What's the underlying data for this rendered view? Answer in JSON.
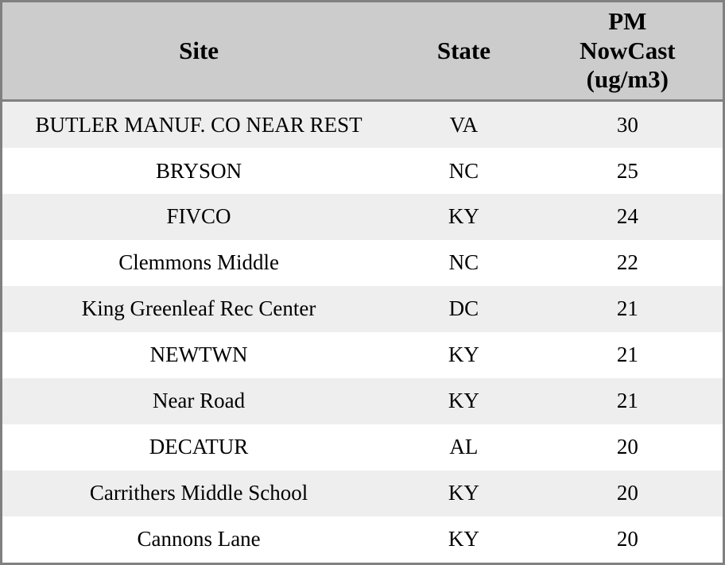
{
  "table": {
    "columns": [
      {
        "key": "site",
        "label": "Site"
      },
      {
        "key": "state",
        "label": "State"
      },
      {
        "key": "pm",
        "label": "PM\nNowCast\n(ug/m3)"
      }
    ],
    "rows": [
      {
        "site": "BUTLER MANUF. CO NEAR REST",
        "state": "VA",
        "pm": "30"
      },
      {
        "site": "BRYSON",
        "state": "NC",
        "pm": "25"
      },
      {
        "site": "FIVCO",
        "state": "KY",
        "pm": "24"
      },
      {
        "site": "Clemmons Middle",
        "state": "NC",
        "pm": "22"
      },
      {
        "site": "King Greenleaf Rec Center",
        "state": "DC",
        "pm": "21"
      },
      {
        "site": "NEWTWN",
        "state": "KY",
        "pm": "21"
      },
      {
        "site": "Near Road",
        "state": "KY",
        "pm": "21"
      },
      {
        "site": "DECATUR",
        "state": "AL",
        "pm": "20"
      },
      {
        "site": "Carrithers Middle School",
        "state": "KY",
        "pm": "20"
      },
      {
        "site": "Cannons Lane",
        "state": "KY",
        "pm": "20"
      }
    ],
    "colors": {
      "header_bg": "#cccccc",
      "row_alt_bg": "#eeeeee",
      "row_bg": "#ffffff",
      "border": "#808080",
      "text": "#000000"
    }
  },
  "chart_data": {
    "type": "table",
    "title": "",
    "columns": [
      "Site",
      "State",
      "PM NowCast (ug/m3)"
    ],
    "categories": [
      "BUTLER MANUF. CO NEAR REST",
      "BRYSON",
      "FIVCO",
      "Clemmons Middle",
      "King Greenleaf Rec Center",
      "NEWTWN",
      "Near Road",
      "DECATUR",
      "Carrithers Middle School",
      "Cannons Lane"
    ],
    "series": [
      {
        "name": "State",
        "values": [
          "VA",
          "NC",
          "KY",
          "NC",
          "DC",
          "KY",
          "KY",
          "AL",
          "KY",
          "KY"
        ]
      },
      {
        "name": "PM NowCast (ug/m3)",
        "values": [
          30,
          25,
          24,
          22,
          21,
          21,
          21,
          20,
          20,
          20
        ]
      }
    ]
  }
}
